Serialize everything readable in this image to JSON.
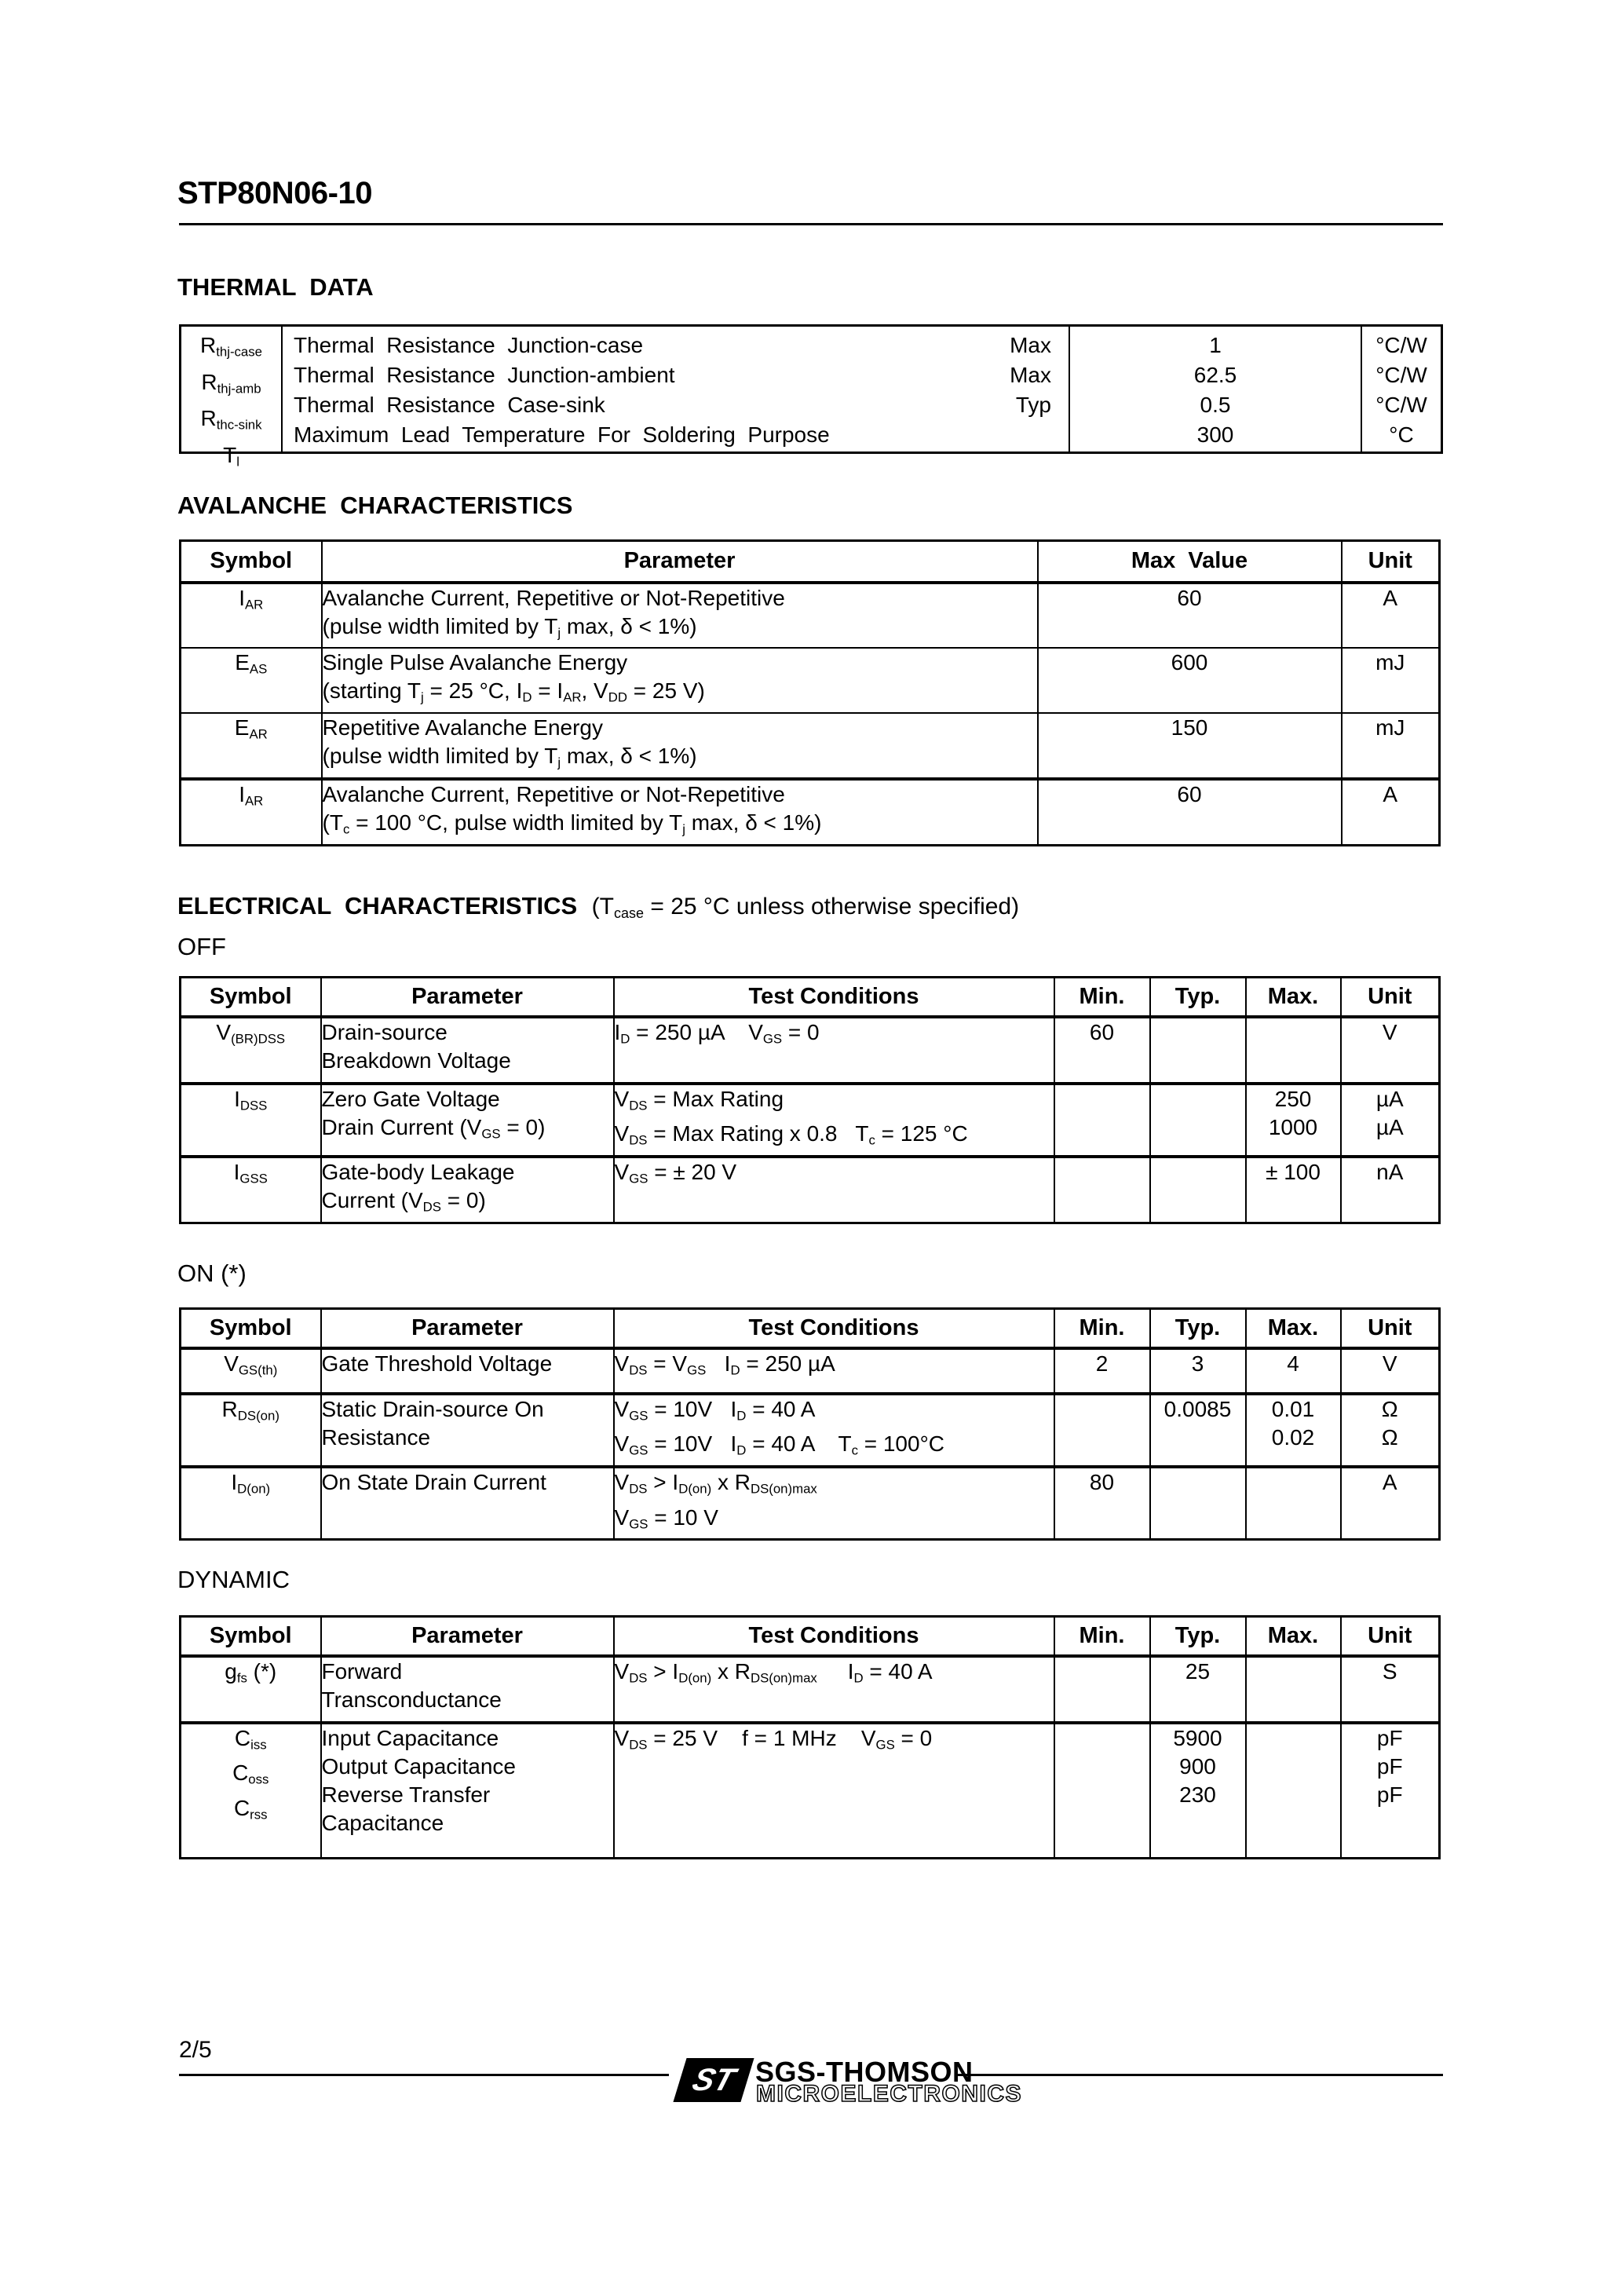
{
  "title": "STP80N06-10",
  "thermal": {
    "heading": "THERMAL  DATA",
    "rows": [
      {
        "symbol": "R~thj-case~",
        "parameter": "Thermal  Resistance  Junction-case",
        "qual": "Max",
        "value": "1",
        "unit": "°C/W"
      },
      {
        "symbol": "R~thj-amb~",
        "parameter": "Thermal  Resistance  Junction-ambient",
        "qual": "Max",
        "value": "62.5",
        "unit": "°C/W"
      },
      {
        "symbol": "R~thc-sink~",
        "parameter": "Thermal  Resistance  Case-sink",
        "qual": "Typ",
        "value": "0.5",
        "unit": "°C/W"
      },
      {
        "symbol": "T~l~",
        "parameter": "Maximum  Lead  Temperature  For  Soldering  Purpose",
        "qual": "",
        "value": "300",
        "unit": "°C"
      }
    ]
  },
  "avalanche": {
    "heading": "AVALANCHE  CHARACTERISTICS",
    "h": {
      "symbol": "Symbol",
      "parameter": "Parameter",
      "value": "Max  Value",
      "unit": "Unit"
    },
    "rows": [
      {
        "symbol": "I~AR~",
        "l1": "Avalanche Current, Repetitive or Not-Repetitive",
        "l2": "(pulse width limited by T~j~ max, δ < 1%)",
        "value": "60",
        "unit": "A"
      },
      {
        "symbol": "E~AS~",
        "l1": "Single Pulse Avalanche Energy",
        "l2": "(starting T~j~ = 25 °C, I~D~ = I~AR~, V~DD~ = 25 V)",
        "value": "600",
        "unit": "mJ"
      },
      {
        "symbol": "E~AR~",
        "l1": "Repetitive Avalanche Energy",
        "l2": "(pulse width limited by T~j~ max, δ < 1%)",
        "value": "150",
        "unit": "mJ"
      },
      {
        "symbol": "I~AR~",
        "l1": "Avalanche Current, Repetitive or Not-Repetitive",
        "l2": "(T~c~ = 100 °C, pulse width limited by T~j~ max, δ < 1%)",
        "value": "60",
        "unit": "A"
      }
    ]
  },
  "elec": {
    "heading": "ELECTRICAL  CHARACTERISTICS",
    "note": "(T~case~ = 25 °C unless otherwise specified)",
    "off_label": "OFF",
    "on_label": "ON (*)",
    "dyn_label": "DYNAMIC",
    "h": {
      "symbol": "Symbol",
      "parameter": "Parameter",
      "test": "Test Conditions",
      "min": "Min.",
      "typ": "Typ.",
      "max": "Max.",
      "unit": "Unit"
    },
    "off_rows": [
      {
        "symbol": "V~(BR)DSS~",
        "p1": "Drain-source",
        "p2": "Breakdown Voltage",
        "t1": "I~D~ = 250 µA    V~GS~ = 0",
        "min": "60",
        "u1": "V"
      },
      {
        "symbol": "I~DSS~",
        "p1": "Zero Gate Voltage",
        "p2": "Drain Current (V~GS~ = 0)",
        "t1": "V~DS~ = Max Rating",
        "t2": "V~DS~ = Max Rating x 0.8   T~c~ = 125 °C",
        "max1": "250",
        "max2": "1000",
        "u1": "µA",
        "u2": "µA"
      },
      {
        "symbol": "I~GSS~",
        "p1": "Gate-body Leakage",
        "p2": "Current (V~DS~ = 0)",
        "t1": "V~GS~ = ± 20 V",
        "max1": "± 100",
        "u1": "nA"
      }
    ],
    "on_rows": [
      {
        "symbol": "V~GS(th)~",
        "p1": "Gate Threshold Voltage",
        "t1": "V~DS~ = V~GS~   I~D~ = 250 µA",
        "min": "2",
        "typ1": "3",
        "max1": "4",
        "u1": "V"
      },
      {
        "symbol": "R~DS(on)~",
        "p1": "Static Drain-source On",
        "p2": "Resistance",
        "t1": "V~GS~ = 10V   I~D~ = 40 A",
        "t2": "V~GS~ = 10V   I~D~ = 40 A    T~c~ = 100°C",
        "typ1": "0.0085",
        "max1": "0.01",
        "max2": "0.02",
        "u1": "Ω",
        "u2": "Ω"
      },
      {
        "symbol": "I~D(on)~",
        "p1": "On State Drain Current",
        "t1": "V~DS~ > I~D(on)~ x R~DS(on)max~",
        "t2": "V~GS~ = 10 V",
        "min": "80",
        "u1": "A"
      }
    ],
    "dyn_rows": [
      {
        "s1": "g~fs~ (*)",
        "p1": "Forward",
        "p2": "Transconductance",
        "t1": "V~DS~ > I~D(on)~ x R~DS(on)max~     I~D~ = 40 A",
        "typ1": "25",
        "u1": "S"
      },
      {
        "s1": "C~iss~",
        "s2": "C~oss~",
        "s3": "C~rss~",
        "p1": "Input Capacitance",
        "p2": "Output Capacitance",
        "p3": "Reverse Transfer",
        "p4": "Capacitance",
        "t1": "V~DS~ = 25 V    f = 1 MHz    V~GS~ = 0",
        "typ1": "5900",
        "typ2": "900",
        "typ3": "230",
        "u1": "pF",
        "u2": "pF",
        "u3": "pF"
      }
    ]
  },
  "footer": {
    "page": "2/5",
    "logo_st": "ST",
    "brand": "SGS-THOMSON",
    "brand_sub": "MICROELECTRONICS"
  }
}
